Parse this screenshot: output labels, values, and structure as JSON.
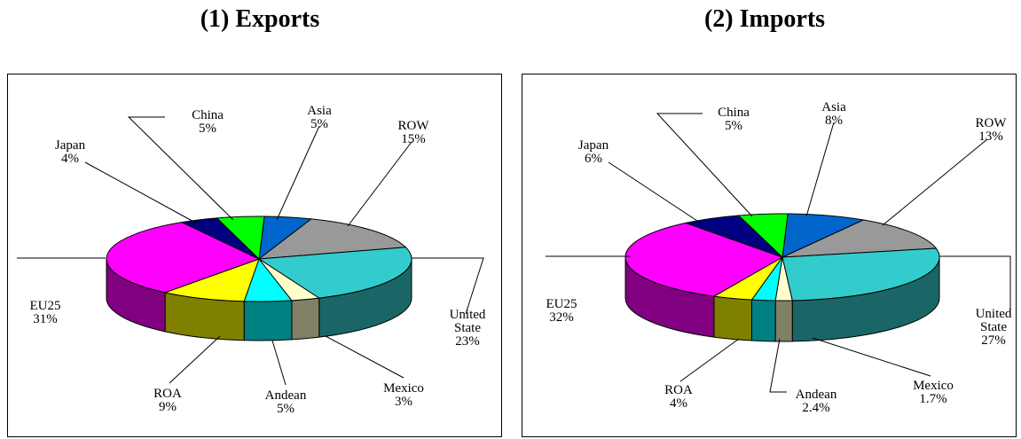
{
  "charts": [
    {
      "title": "(1) Exports",
      "chart_data": {
        "type": "pie",
        "title": "(1) Exports",
        "slices": [
          {
            "name": "Asia",
            "value": 5,
            "label": "5%",
            "color": "#0066CC"
          },
          {
            "name": "ROW",
            "value": 15,
            "label": "15%",
            "color": "#999999"
          },
          {
            "name": "United State",
            "value": 23,
            "label": "23%",
            "color": "#33CCCC"
          },
          {
            "name": "Mexico",
            "value": 3,
            "label": "3%",
            "color": "#FFFFCC"
          },
          {
            "name": "Andean",
            "value": 5,
            "label": "5%",
            "color": "#00FFFF"
          },
          {
            "name": "ROA",
            "value": 9,
            "label": "9%",
            "color": "#FFFF00"
          },
          {
            "name": "EU25",
            "value": 31,
            "label": "31%",
            "color": "#FF00FF"
          },
          {
            "name": "Japan",
            "value": 4,
            "label": "4%",
            "color": "#000080"
          },
          {
            "name": "China",
            "value": 5,
            "label": "5%",
            "color": "#00FF00"
          }
        ]
      }
    },
    {
      "title": "(2) Imports",
      "chart_data": {
        "type": "pie",
        "title": "(2) Imports",
        "slices": [
          {
            "name": "Asia",
            "value": 8,
            "label": "8%",
            "color": "#0066CC"
          },
          {
            "name": "ROW",
            "value": 13,
            "label": "13%",
            "color": "#999999"
          },
          {
            "name": "United State",
            "value": 27,
            "label": "27%",
            "color": "#33CCCC"
          },
          {
            "name": "Mexico",
            "value": 1.7,
            "label": "1.7%",
            "color": "#FFFFCC"
          },
          {
            "name": "Andean",
            "value": 2.4,
            "label": "2.4%",
            "color": "#00FFFF"
          },
          {
            "name": "ROA",
            "value": 4,
            "label": "4%",
            "color": "#FFFF00"
          },
          {
            "name": "EU25",
            "value": 32,
            "label": "32%",
            "color": "#FF00FF"
          },
          {
            "name": "Japan",
            "value": 6,
            "label": "6%",
            "color": "#000080"
          },
          {
            "name": "China",
            "value": 5,
            "label": "5%",
            "color": "#00FF00"
          }
        ]
      }
    }
  ]
}
